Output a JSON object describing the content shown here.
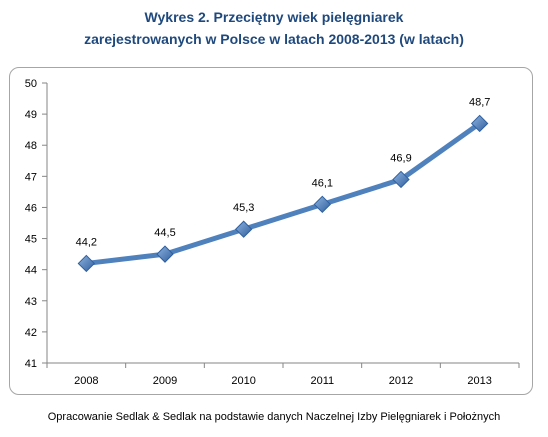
{
  "title": {
    "line1": "Wykres 2. Przeciętny wiek pielęgniarek",
    "line2": "zarejestrowanych w Polsce w latach 2008-2013 (w latach)"
  },
  "source_note": "Opracowanie Sedlak & Sedlak na podstawie danych Naczelnej Izby Pielęgniarek i Położnych",
  "chart_data": {
    "type": "line",
    "categories": [
      "2008",
      "2009",
      "2010",
      "2011",
      "2012",
      "2013"
    ],
    "values": [
      44.2,
      44.5,
      45.3,
      46.1,
      46.9,
      48.7
    ],
    "data_labels": [
      "44,2",
      "44,5",
      "45,3",
      "46,1",
      "46,9",
      "48,7"
    ],
    "ylim": [
      41,
      50
    ],
    "yticks": [
      "41",
      "42",
      "43",
      "44",
      "45",
      "46",
      "47",
      "48",
      "49",
      "50"
    ],
    "grid": false,
    "legend": "none",
    "marker": "diamond",
    "colors": {
      "line": "#4f81bd",
      "marker_fill": "#4f81bd",
      "axis": "#868686"
    }
  }
}
